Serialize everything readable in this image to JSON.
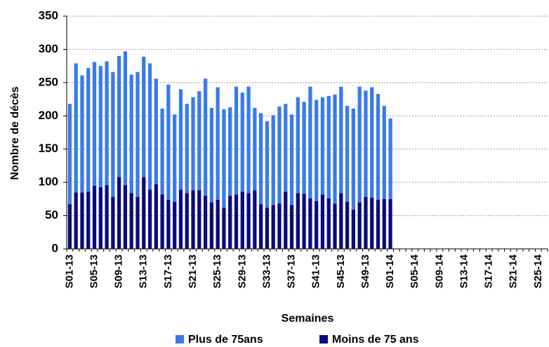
{
  "chart_data": {
    "type": "stacked_bar",
    "x_label": "Semaines",
    "y_label": "Nombre de décès",
    "categories": [
      "S01-13",
      null,
      null,
      null,
      "S05-13",
      null,
      null,
      null,
      "S09-13",
      null,
      null,
      null,
      "S13-13",
      null,
      null,
      null,
      "S17-13",
      null,
      null,
      null,
      "S21-13",
      null,
      null,
      null,
      "S25-13",
      null,
      null,
      null,
      "S29-13",
      null,
      null,
      null,
      "S33-13",
      null,
      null,
      null,
      "S37-13",
      null,
      null,
      null,
      "S41-13",
      null,
      null,
      null,
      "S45-13",
      null,
      null,
      null,
      "S49-13",
      null,
      null,
      null,
      "S01-14",
      null,
      null,
      null,
      "S05-14",
      null,
      null,
      null,
      "S09-14",
      null,
      null,
      null,
      "S13-14",
      null,
      null,
      null,
      "S17-14",
      null,
      null,
      null,
      "S21-14",
      null,
      null,
      null,
      "S25-14",
      null
    ],
    "series": [
      {
        "name": "Plus de 75ans",
        "color": "#3a7be8",
        "values": [
          151,
          194,
          176,
          186,
          186,
          182,
          186,
          188,
          182,
          201,
          178,
          188,
          181,
          190,
          159,
          129,
          173,
          131,
          151,
          134,
          140,
          149,
          176,
          142,
          169,
          148,
          133,
          162,
          149,
          160,
          124,
          137,
          130,
          135,
          146,
          132,
          136,
          144,
          138,
          168,
          152,
          146,
          154,
          164,
          160,
          144,
          152,
          174,
          160,
          166,
          159,
          140,
          121,
          null,
          null,
          null,
          null,
          null,
          null,
          null,
          null,
          null,
          null,
          null,
          null,
          null,
          null,
          null,
          null,
          null,
          null,
          null,
          null,
          null,
          null,
          null,
          null,
          null
        ]
      },
      {
        "name": "Moins de 75 ans",
        "color": "#0b0b7c",
        "values": [
          67,
          85,
          85,
          86,
          95,
          93,
          96,
          78,
          108,
          96,
          84,
          78,
          108,
          89,
          97,
          82,
          74,
          71,
          89,
          84,
          88,
          88,
          80,
          70,
          74,
          62,
          80,
          82,
          86,
          84,
          88,
          67,
          62,
          66,
          68,
          86,
          66,
          84,
          83,
          76,
          72,
          82,
          76,
          68,
          84,
          71,
          59,
          70,
          78,
          77,
          74,
          75,
          75,
          null,
          null,
          null,
          null,
          null,
          null,
          null,
          null,
          null,
          null,
          null,
          null,
          null,
          null,
          null,
          null,
          null,
          null,
          null,
          null,
          null,
          null,
          null,
          null,
          null
        ]
      }
    ],
    "ylim": [
      0,
      350
    ],
    "yticks": [
      0,
      50,
      100,
      150,
      200,
      250,
      300,
      350
    ],
    "grid": true,
    "legend": "bottom"
  }
}
